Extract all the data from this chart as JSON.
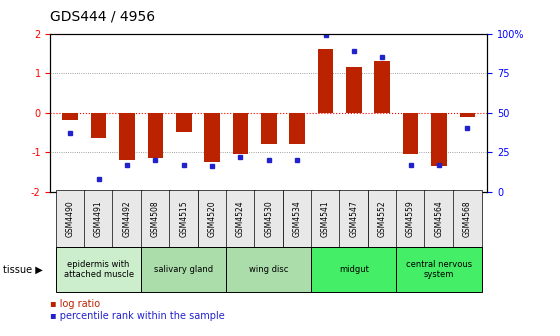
{
  "title": "GDS444 / 4956",
  "samples": [
    "GSM4490",
    "GSM4491",
    "GSM4492",
    "GSM4508",
    "GSM4515",
    "GSM4520",
    "GSM4524",
    "GSM4530",
    "GSM4534",
    "GSM4541",
    "GSM4547",
    "GSM4552",
    "GSM4559",
    "GSM4564",
    "GSM4568"
  ],
  "log_ratio": [
    -0.2,
    -0.65,
    -1.2,
    -1.15,
    -0.5,
    -1.25,
    -1.05,
    -0.8,
    -0.8,
    1.6,
    1.15,
    1.3,
    -1.05,
    -1.35,
    -0.12
  ],
  "percentile": [
    37,
    8,
    17,
    20,
    17,
    16,
    22,
    20,
    20,
    99,
    89,
    85,
    17,
    17,
    40
  ],
  "tissues": [
    {
      "label": "epidermis with\nattached muscle",
      "start": 0,
      "end": 2,
      "color": "#cceecc"
    },
    {
      "label": "salivary gland",
      "start": 3,
      "end": 5,
      "color": "#aaddaa"
    },
    {
      "label": "wing disc",
      "start": 6,
      "end": 8,
      "color": "#aaddaa"
    },
    {
      "label": "midgut",
      "start": 9,
      "end": 11,
      "color": "#44ee66"
    },
    {
      "label": "central nervous\nsystem",
      "start": 12,
      "end": 14,
      "color": "#44ee66"
    }
  ],
  "bar_color": "#bb2200",
  "dot_color": "#2222cc",
  "ylim_left": [
    -2,
    2
  ],
  "ylim_right": [
    0,
    100
  ],
  "yticks_left": [
    -2,
    -1,
    0,
    1,
    2
  ],
  "yticks_right": [
    0,
    25,
    50,
    75,
    100
  ],
  "ytick_labels_right": [
    "0",
    "25",
    "50",
    "75",
    "100%"
  ],
  "hline_y": [
    -1,
    0,
    1
  ],
  "background_color": "#ffffff"
}
